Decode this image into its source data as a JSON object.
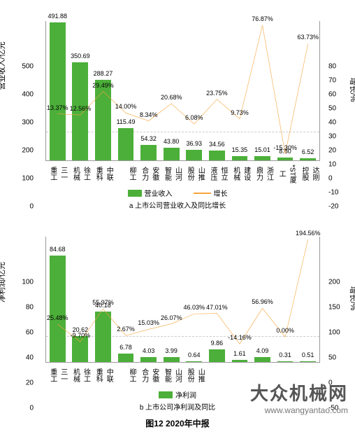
{
  "colors": {
    "bar": "#4caf3a",
    "line": "#f7a63e",
    "axis": "#999999",
    "text": "#333333"
  },
  "chart_a": {
    "type": "bar+line",
    "y_left": {
      "label": "营业收入/亿元",
      "min": 0,
      "max": 500,
      "step": 100
    },
    "y_right": {
      "label": "增长/%",
      "min": -20,
      "max": 80,
      "step": 10
    },
    "categories": [
      "三一重工",
      "徐工机械",
      "中联重科",
      "柳工",
      "安徽合力",
      "山河智能",
      "山推股份",
      "恒立液压",
      "建设机械",
      "浙江鼎力",
      "*ST厦工",
      "达刚控股"
    ],
    "bar_values": [
      491.88,
      350.69,
      288.27,
      115.49,
      54.32,
      43.8,
      36.93,
      34.56,
      15.35,
      15.01,
      8.8,
      6.52
    ],
    "line_values": [
      13.37,
      12.56,
      29.49,
      14.0,
      8.34,
      20.68,
      6.08,
      23.75,
      9.73,
      76.87,
      -15.3,
      63.73
    ],
    "legend_bar": "营业收入",
    "legend_line": "增长",
    "subtitle": "a 上市公司营业收入及同比增长"
  },
  "chart_b": {
    "type": "bar+line",
    "y_left": {
      "label": "净利润/亿元",
      "min": 0,
      "max": 100,
      "step": 20
    },
    "y_right": {
      "label": "增长/%",
      "min": -50,
      "max": 200,
      "step": 50
    },
    "categories": [
      "三一重工",
      "徐工机械",
      "中联重科",
      "柳工",
      "安徽合力",
      "山河智能",
      "山推股份",
      "",
      "",
      "",
      "",
      ""
    ],
    "bar_values": [
      84.68,
      20.62,
      40.18,
      6.78,
      4.03,
      3.99,
      0.64,
      9.86,
      1.61,
      4.09,
      0.31,
      0.51
    ],
    "line_values": [
      25.48,
      -9.7,
      55.97,
      2.67,
      15.03,
      26.07,
      46.03,
      47.01,
      -14.16,
      56.96,
      0,
      194.56
    ],
    "legend_bar": "净利润",
    "legend_line": "",
    "subtitle": "b 上市公司净利润及同比"
  },
  "caption": "图12 2020年中报",
  "watermark": {
    "main": "大众机械网",
    "sub": "www.wangyantao.com"
  }
}
